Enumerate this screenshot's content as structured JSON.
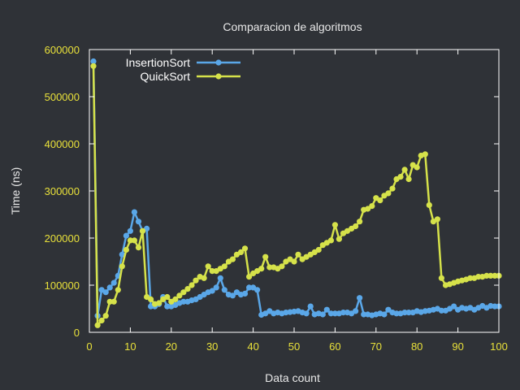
{
  "chart_data": {
    "type": "line",
    "title": "Comparacion de algoritmos",
    "xlabel": "Data count",
    "ylabel": "Time (ns)",
    "xlim": [
      0,
      100
    ],
    "ylim": [
      0,
      600000
    ],
    "x_ticks": [
      0,
      10,
      20,
      30,
      40,
      50,
      60,
      70,
      80,
      90,
      100
    ],
    "y_ticks": [
      0,
      100000,
      200000,
      300000,
      400000,
      500000,
      600000
    ],
    "grid": false,
    "legend_position": "top-left",
    "colors": {
      "background": "#2f3237",
      "axes": "#ffffff",
      "tick_labels": "#e8e03a",
      "text": "#e8e8e8"
    },
    "series": [
      {
        "name": "InsertionSort",
        "color": "#5aa7e8",
        "x": [
          1,
          2,
          3,
          4,
          5,
          6,
          7,
          8,
          9,
          10,
          11,
          12,
          13,
          14,
          15,
          16,
          17,
          18,
          19,
          20,
          21,
          22,
          23,
          24,
          25,
          26,
          27,
          28,
          29,
          30,
          31,
          32,
          33,
          34,
          35,
          36,
          37,
          38,
          39,
          40,
          41,
          42,
          43,
          44,
          45,
          46,
          47,
          48,
          49,
          50,
          51,
          52,
          53,
          54,
          55,
          56,
          57,
          58,
          59,
          60,
          61,
          62,
          63,
          64,
          65,
          66,
          67,
          68,
          69,
          70,
          71,
          72,
          73,
          74,
          75,
          76,
          77,
          78,
          79,
          80,
          81,
          82,
          83,
          84,
          85,
          86,
          87,
          88,
          89,
          90,
          91,
          92,
          93,
          94,
          95,
          96,
          97,
          98,
          99,
          100
        ],
        "values": [
          575000,
          35000,
          90000,
          85000,
          95000,
          105000,
          120000,
          165000,
          205000,
          215000,
          255000,
          235000,
          215000,
          220000,
          55000,
          55000,
          60000,
          75000,
          55000,
          55000,
          58000,
          62000,
          65000,
          65000,
          68000,
          70000,
          75000,
          80000,
          85000,
          88000,
          95000,
          115000,
          90000,
          80000,
          78000,
          85000,
          80000,
          82000,
          95000,
          95000,
          90000,
          37000,
          40000,
          45000,
          40000,
          42000,
          40000,
          42000,
          43000,
          44000,
          45000,
          42000,
          40000,
          55000,
          38000,
          40000,
          38000,
          48000,
          40000,
          40000,
          40000,
          42000,
          42000,
          40000,
          45000,
          73000,
          38000,
          38000,
          36000,
          38000,
          40000,
          38000,
          48000,
          42000,
          40000,
          40000,
          42000,
          42000,
          42000,
          45000,
          43000,
          45000,
          46000,
          48000,
          50000,
          46000,
          46000,
          50000,
          55000,
          48000,
          52000,
          50000,
          52000,
          48000,
          52000,
          56000,
          52000,
          56000,
          55000,
          55000
        ]
      },
      {
        "name": "QuickSort",
        "color": "#d6e24a",
        "x": [
          1,
          2,
          3,
          4,
          5,
          6,
          7,
          8,
          9,
          10,
          11,
          12,
          13,
          14,
          15,
          16,
          17,
          18,
          19,
          20,
          21,
          22,
          23,
          24,
          25,
          26,
          27,
          28,
          29,
          30,
          31,
          32,
          33,
          34,
          35,
          36,
          37,
          38,
          39,
          40,
          41,
          42,
          43,
          44,
          45,
          46,
          47,
          48,
          49,
          50,
          51,
          52,
          53,
          54,
          55,
          56,
          57,
          58,
          59,
          60,
          61,
          62,
          63,
          64,
          65,
          66,
          67,
          68,
          69,
          70,
          71,
          72,
          73,
          74,
          75,
          76,
          77,
          78,
          79,
          80,
          81,
          82,
          83,
          84,
          85,
          86,
          87,
          88,
          89,
          90,
          91,
          92,
          93,
          94,
          95,
          96,
          97,
          98,
          99,
          100
        ],
        "values": [
          565000,
          15000,
          25000,
          35000,
          65000,
          65000,
          90000,
          140000,
          175000,
          195000,
          195000,
          180000,
          215000,
          75000,
          70000,
          60000,
          62000,
          70000,
          75000,
          65000,
          70000,
          78000,
          85000,
          92000,
          100000,
          110000,
          118000,
          115000,
          140000,
          130000,
          130000,
          135000,
          140000,
          150000,
          155000,
          165000,
          170000,
          178000,
          118000,
          125000,
          130000,
          135000,
          160000,
          138000,
          138000,
          135000,
          140000,
          150000,
          155000,
          150000,
          165000,
          155000,
          160000,
          165000,
          170000,
          175000,
          185000,
          190000,
          195000,
          228000,
          198000,
          210000,
          215000,
          220000,
          225000,
          235000,
          260000,
          262000,
          268000,
          285000,
          280000,
          290000,
          295000,
          305000,
          325000,
          330000,
          345000,
          325000,
          355000,
          350000,
          375000,
          378000,
          270000,
          235000,
          240000,
          115000,
          100000,
          102000,
          105000,
          108000,
          110000,
          112000,
          115000,
          115000,
          118000,
          118000,
          120000,
          120000,
          120000,
          120000
        ]
      }
    ]
  }
}
